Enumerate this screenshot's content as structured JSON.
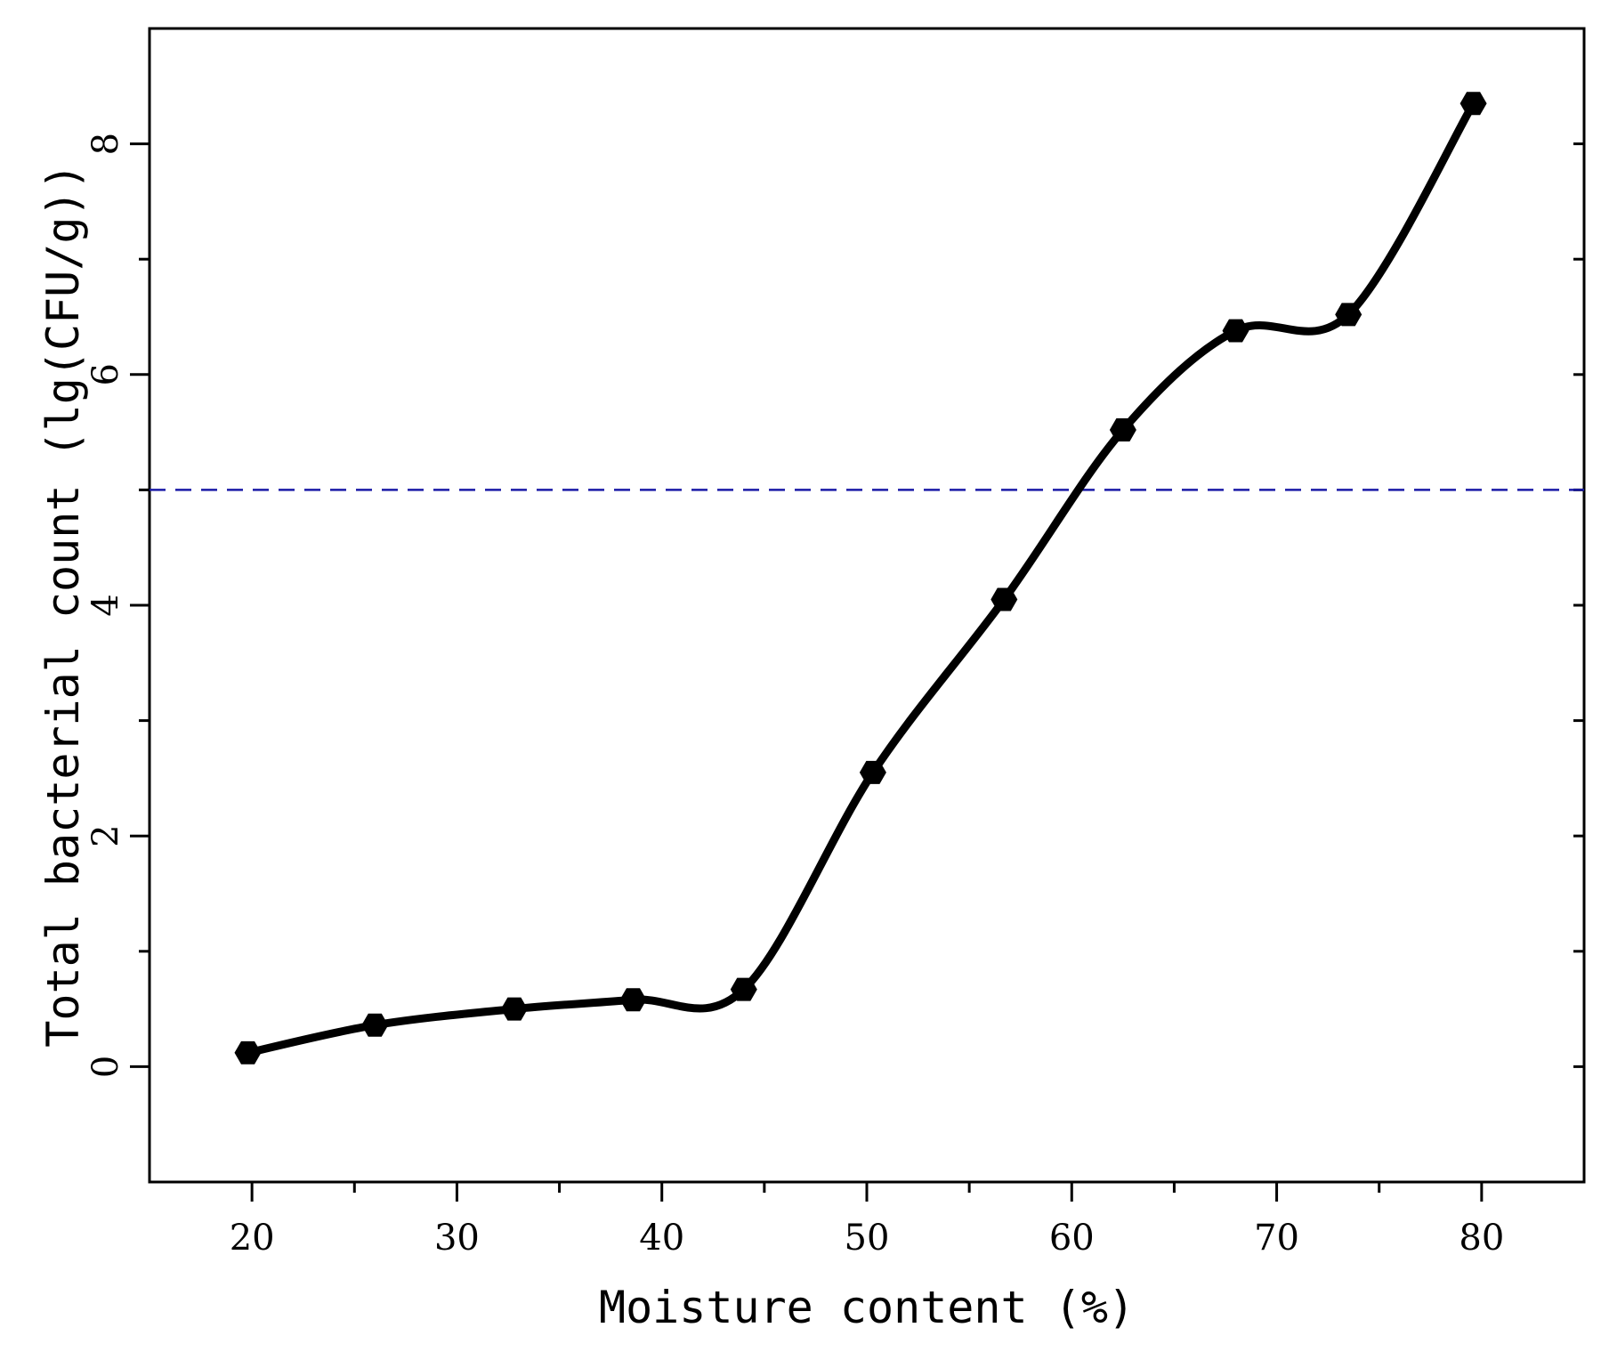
{
  "chart_data": {
    "type": "line",
    "title": "",
    "xlabel": "Moisture content (%)",
    "ylabel": "Total bacterial count (lg(CFU/g))",
    "xlim": [
      15,
      85
    ],
    "ylim": [
      -1,
      9
    ],
    "xticks": [
      "20",
      "30",
      "40",
      "50",
      "60",
      "70",
      "80"
    ],
    "yticks": [
      "0",
      "2",
      "4",
      "6",
      "8"
    ],
    "series": [
      {
        "x": [
          19.8,
          26.0,
          32.8,
          38.6,
          44.0,
          50.3,
          56.7,
          62.5,
          68.0,
          73.5,
          79.6
        ],
        "y": [
          0.12,
          0.36,
          0.5,
          0.58,
          0.67,
          2.55,
          4.05,
          5.52,
          6.38,
          6.52,
          8.35
        ],
        "color": "#000000",
        "marker": "hexagon"
      }
    ],
    "reference_line": {
      "y": 5.0,
      "style": "dashed",
      "color": "#1a1aa6"
    },
    "grid": false,
    "legend": "none"
  }
}
